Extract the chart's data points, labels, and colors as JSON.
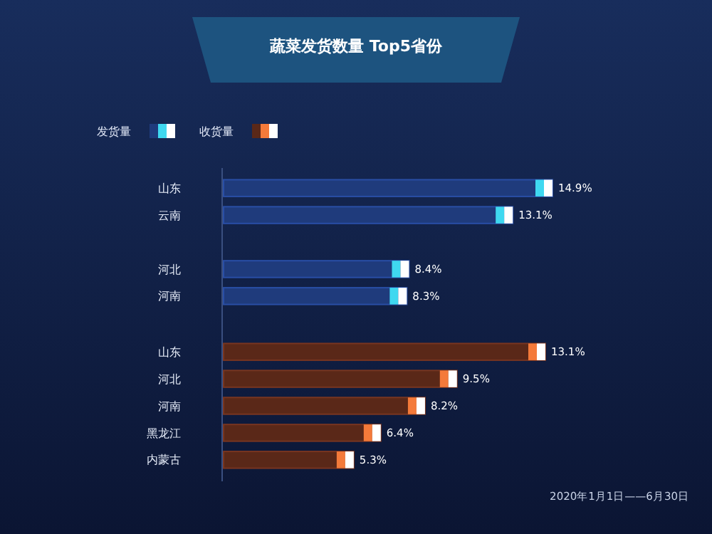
{
  "chart_data": [
    {
      "type": "bar",
      "orientation": "horizontal",
      "title": "蔬菜发货数量 Top5省份",
      "categories": [
        "山东",
        "云南",
        null,
        "河北",
        "河南"
      ],
      "series": [
        {
          "name": "发货量",
          "color": "#1f3b7c",
          "values": [
            14.9,
            13.1,
            null,
            8.4,
            8.3
          ],
          "value_labels": [
            "14.9%",
            "13.1%",
            null,
            "8.4%",
            "8.3%"
          ]
        }
      ],
      "tick_labels": "y",
      "legend": "top left"
    },
    {
      "type": "bar",
      "orientation": "horizontal",
      "categories": [
        "山东",
        "河北",
        "河南",
        "黑龙江",
        "内蒙古"
      ],
      "series": [
        {
          "name": "收货量",
          "color": "#5a2818",
          "values": [
            13.1,
            9.5,
            8.2,
            6.4,
            5.3
          ],
          "value_labels": [
            "13.1%",
            "9.5%",
            "8.2%",
            "6.4%",
            "5.3%"
          ]
        }
      ],
      "tick_labels": "y",
      "legend": "top left",
      "annotations": [
        "2020年1月1日——6月30日"
      ]
    }
  ]
}
